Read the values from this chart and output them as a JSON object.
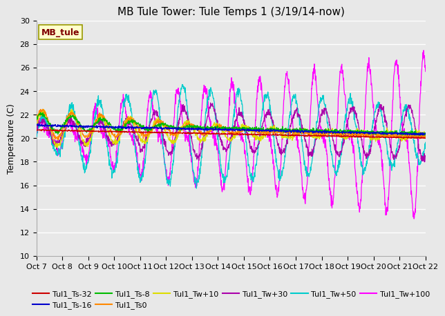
{
  "title": "MB Tule Tower: Tule Temps 1 (3/19/14-now)",
  "ylabel": "Temperature (C)",
  "ylim": [
    10,
    30
  ],
  "yticks": [
    10,
    12,
    14,
    16,
    18,
    20,
    22,
    24,
    26,
    28,
    30
  ],
  "x_start": 7,
  "x_end": 22,
  "xtick_labels": [
    "Oct 7",
    "Oct 8",
    "Oct 9",
    "Oct 10",
    "Oct 11",
    "Oct 12",
    "Oct 13",
    "Oct 14",
    "Oct 15",
    "Oct 16",
    "Oct 17",
    "Oct 18",
    "Oct 19",
    "Oct 20",
    "Oct 21",
    "Oct 22"
  ],
  "xtick_positions": [
    7,
    8,
    9,
    10,
    11,
    12,
    13,
    14,
    15,
    16,
    17,
    18,
    19,
    20,
    21,
    22
  ],
  "legend_label": "MB_tule",
  "legend_box_color": "#ffffcc",
  "legend_text_color": "#800000",
  "legend_box_edge": "#999900",
  "series_colors": {
    "Tul1_Ts-32": "#cc0000",
    "Tul1_Ts-16": "#0000cc",
    "Tul1_Ts-8": "#00bb00",
    "Tul1_Ts0": "#ff8800",
    "Tul1_Tw+10": "#dddd00",
    "Tul1_Tw+30": "#aa00aa",
    "Tul1_Tw+50": "#00cccc",
    "Tul1_Tw+100": "#ff00ff"
  },
  "plot_bg_color": "#e8e8e8",
  "grid_color": "#ffffff",
  "title_fontsize": 11,
  "tick_fontsize": 8,
  "legend_fontsize": 8
}
